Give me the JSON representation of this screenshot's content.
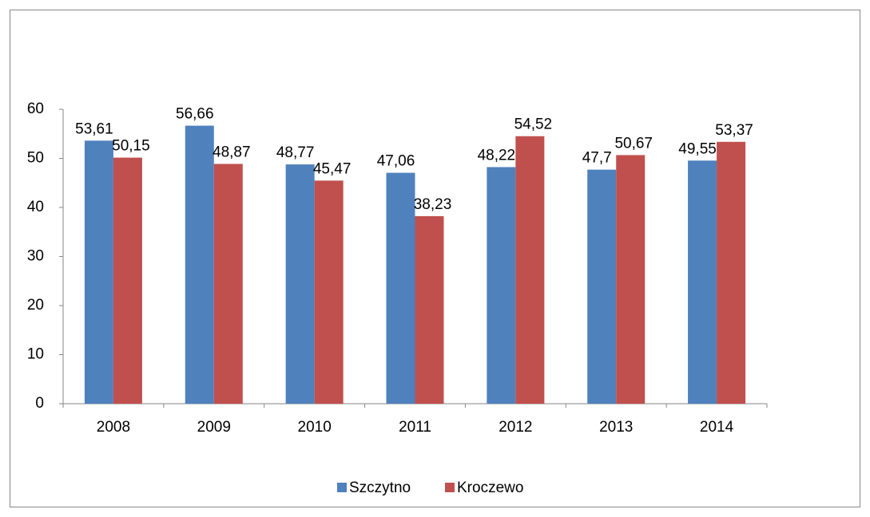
{
  "chart_data": {
    "type": "bar",
    "categories": [
      "2008",
      "2009",
      "2010",
      "2011",
      "2012",
      "2013",
      "2014"
    ],
    "series": [
      {
        "name": "Szczytno",
        "color": "#4f81bd",
        "values": [
          53.61,
          56.66,
          48.77,
          47.06,
          48.22,
          47.7,
          49.55
        ],
        "value_labels": [
          "53,61",
          "56,66",
          "48,77",
          "47,06",
          "48,22",
          "47,7",
          "49,55"
        ]
      },
      {
        "name": "Kroczewo",
        "color": "#c0504d",
        "values": [
          50.15,
          48.87,
          45.47,
          38.23,
          54.52,
          50.67,
          53.37
        ],
        "value_labels": [
          "50,15",
          "48,87",
          "45,47",
          "38,23",
          "54,52",
          "50,67",
          "53,37"
        ]
      }
    ],
    "ylim": [
      0,
      60
    ],
    "yticks": [
      0,
      10,
      20,
      30,
      40,
      50,
      60
    ],
    "grid": false,
    "legend": "bottom"
  }
}
